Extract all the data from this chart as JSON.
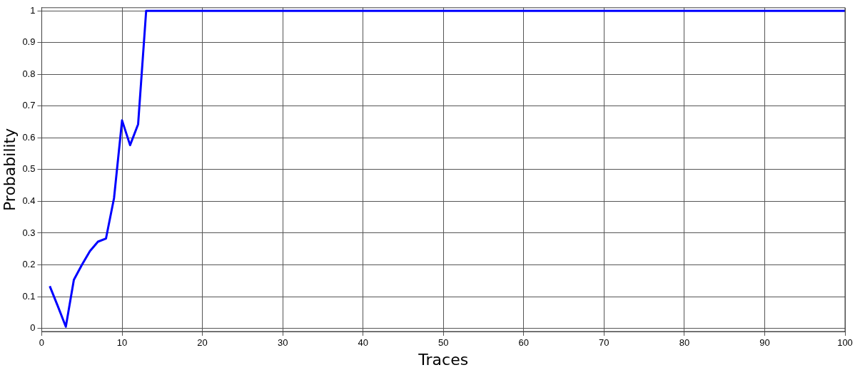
{
  "chart_data": {
    "type": "line",
    "xlabel": "Traces",
    "ylabel": "Probability",
    "x": [
      1,
      2,
      3,
      4,
      5,
      6,
      7,
      8,
      9,
      10,
      11,
      12,
      13,
      100
    ],
    "series": [
      {
        "color": "#0000ff",
        "values": [
          0.133,
          0.07,
          0.005,
          0.153,
          0.2,
          0.243,
          0.273,
          0.283,
          0.41,
          0.655,
          0.577,
          0.643,
          1,
          1
        ]
      }
    ],
    "xlim": [
      0,
      100
    ],
    "xticks": [
      0,
      10,
      20,
      30,
      40,
      50,
      60,
      70,
      80,
      90,
      100
    ],
    "ylim": [
      -0.01,
      1.01
    ],
    "yticks": [
      0,
      0.1,
      0.2,
      0.3,
      0.4,
      0.5,
      0.6,
      0.7,
      0.8,
      0.9,
      1
    ],
    "grid": true,
    "legend": false,
    "marker": "none",
    "line_style": "solid"
  }
}
